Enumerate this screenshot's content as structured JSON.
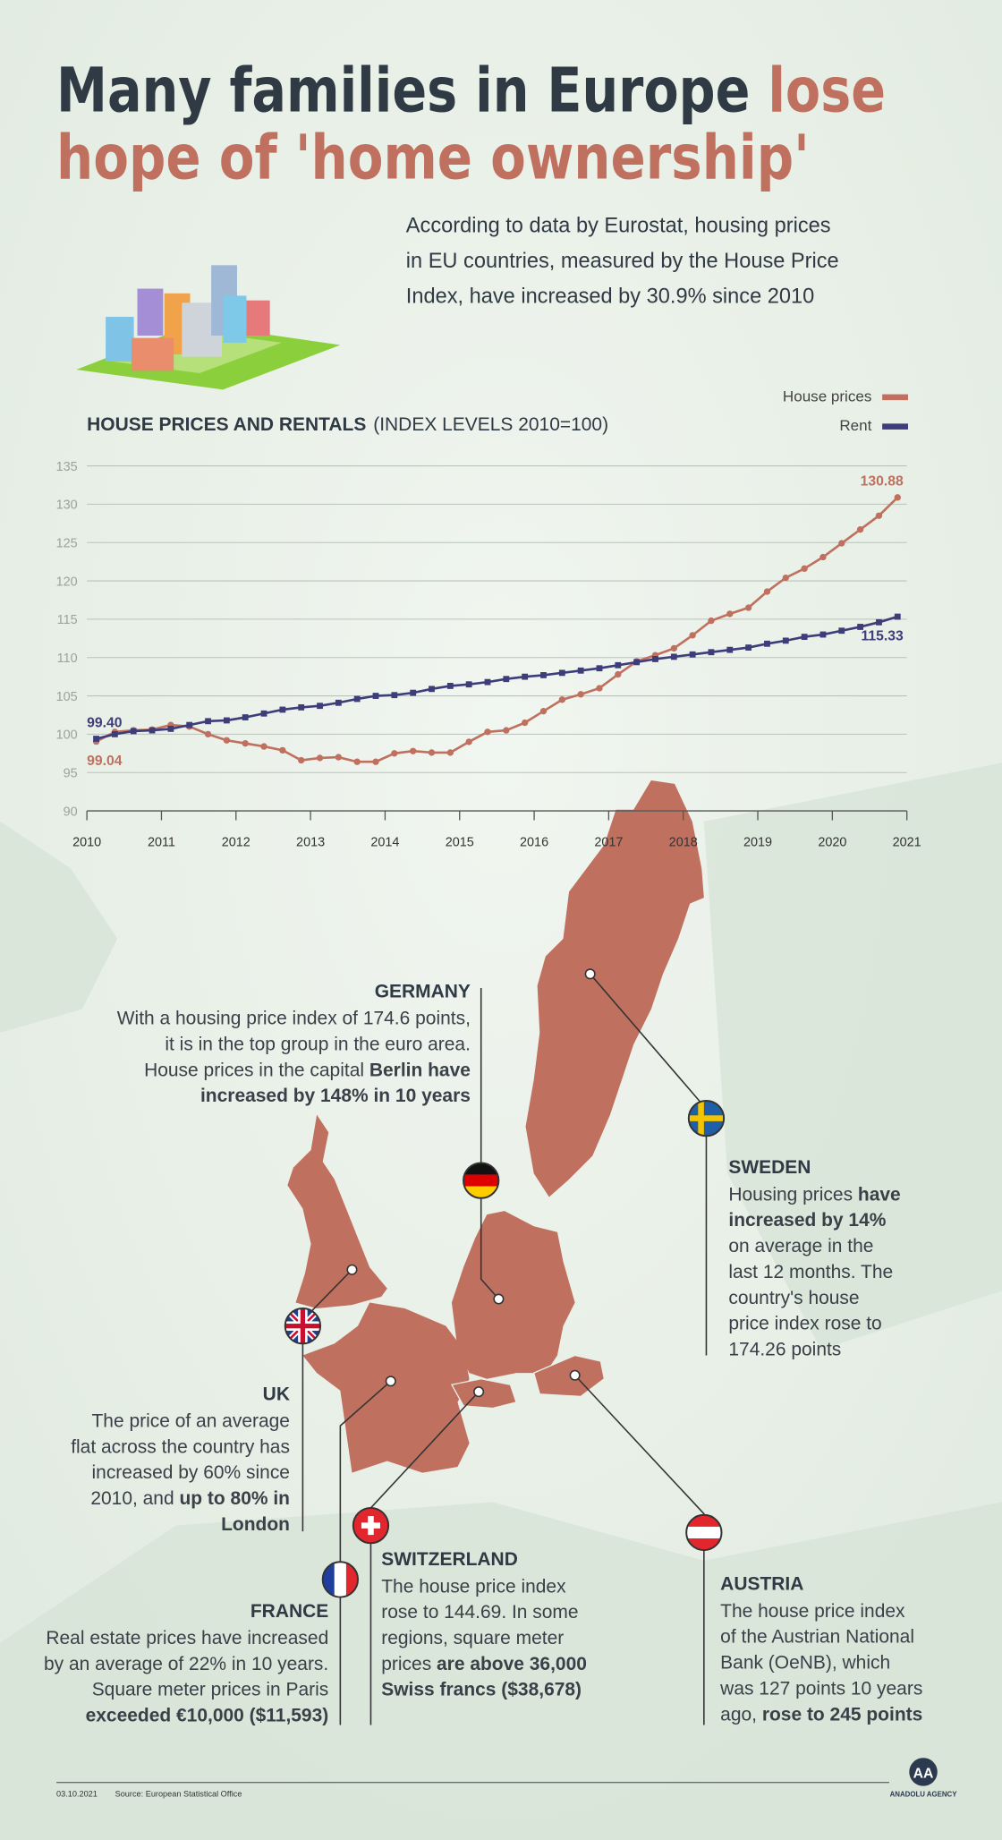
{
  "header": {
    "title_lines": [
      [
        {
          "text": "Many families in Europe ",
          "accent": false
        },
        {
          "text": "lose",
          "accent": true
        }
      ],
      [
        {
          "text": "hope of 'home ownership'",
          "accent": true
        }
      ]
    ],
    "intro_lines": [
      "According to data by Eurostat, housing prices",
      "in EU countries, measured by the House Price",
      "Index, have increased by 30.9% since 2010"
    ]
  },
  "chart_data": {
    "type": "line",
    "title": "HOUSE PRICES AND RENTALS",
    "subtitle": "(INDEX LEVELS 2010=100)",
    "x": [
      2010.125,
      2010.375,
      2010.625,
      2010.875,
      2011.125,
      2011.375,
      2011.625,
      2011.875,
      2012.125,
      2012.375,
      2012.625,
      2012.875,
      2013.125,
      2013.375,
      2013.625,
      2013.875,
      2014.125,
      2014.375,
      2014.625,
      2014.875,
      2015.125,
      2015.375,
      2015.625,
      2015.875,
      2016.125,
      2016.375,
      2016.625,
      2016.875,
      2017.125,
      2017.375,
      2017.625,
      2017.875,
      2018.125,
      2018.375,
      2018.625,
      2018.875,
      2019.125,
      2019.375,
      2019.625,
      2019.875,
      2020.125,
      2020.375,
      2020.625,
      2020.875
    ],
    "series": [
      {
        "name": "House prices",
        "color": "#c0705f",
        "values": [
          99.04,
          100.3,
          100.5,
          100.6,
          101.2,
          101.0,
          100.0,
          99.2,
          98.8,
          98.4,
          97.9,
          96.6,
          96.9,
          97.0,
          96.4,
          96.4,
          97.5,
          97.8,
          97.6,
          97.6,
          99.0,
          100.3,
          100.5,
          101.5,
          103.0,
          104.5,
          105.2,
          106.0,
          107.8,
          109.5,
          110.3,
          111.2,
          112.9,
          114.8,
          115.7,
          116.5,
          118.6,
          120.4,
          121.6,
          123.1,
          124.9,
          126.7,
          128.5,
          130.88
        ],
        "value_labels": [
          "99.04",
          null,
          null,
          null,
          null,
          null,
          null,
          null,
          null,
          null,
          null,
          null,
          null,
          null,
          null,
          null,
          null,
          null,
          null,
          null,
          null,
          null,
          null,
          null,
          null,
          null,
          null,
          null,
          null,
          null,
          null,
          null,
          null,
          null,
          null,
          null,
          null,
          null,
          null,
          null,
          null,
          null,
          null,
          "130.88"
        ]
      },
      {
        "name": "Rent",
        "color": "#3d3d7a",
        "values": [
          99.4,
          100.0,
          100.4,
          100.5,
          100.7,
          101.2,
          101.7,
          101.8,
          102.2,
          102.7,
          103.2,
          103.5,
          103.7,
          104.1,
          104.6,
          105.0,
          105.1,
          105.4,
          105.9,
          106.3,
          106.5,
          106.8,
          107.2,
          107.5,
          107.7,
          108.0,
          108.3,
          108.6,
          109.0,
          109.4,
          109.8,
          110.1,
          110.4,
          110.7,
          111.0,
          111.3,
          111.8,
          112.2,
          112.7,
          113.0,
          113.5,
          114.0,
          114.6,
          115.33
        ],
        "value_labels": [
          "99.40",
          null,
          null,
          null,
          null,
          null,
          null,
          null,
          null,
          null,
          null,
          null,
          null,
          null,
          null,
          null,
          null,
          null,
          null,
          null,
          null,
          null,
          null,
          null,
          null,
          null,
          null,
          null,
          null,
          null,
          null,
          null,
          null,
          null,
          null,
          null,
          null,
          null,
          null,
          null,
          null,
          null,
          null,
          "115.33"
        ]
      }
    ],
    "xlim": [
      2010,
      2021
    ],
    "xticks": [
      2010,
      2011,
      2012,
      2013,
      2014,
      2015,
      2016,
      2017,
      2018,
      2019,
      2020,
      2021
    ],
    "ylim": [
      90,
      135
    ],
    "yticks": [
      90,
      95,
      100,
      105,
      110,
      115,
      120,
      125,
      130,
      135
    ],
    "grid": true,
    "legend": "top-right"
  },
  "map_notes": [
    {
      "country": "GERMANY",
      "lines": [
        [
          {
            "text": "With a housing price index of 174.6 points,",
            "bold": false
          }
        ],
        [
          {
            "text": "it is in the top group in the euro area.",
            "bold": false
          }
        ],
        [
          {
            "text": "House prices in the capital ",
            "bold": false
          },
          {
            "text": "Berlin have",
            "bold": true
          }
        ],
        [
          {
            "text": "increased by 148% in 10 years",
            "bold": true
          }
        ]
      ]
    },
    {
      "country": "SWEDEN",
      "lines": [
        [
          {
            "text": "Housing prices ",
            "bold": false
          },
          {
            "text": "have",
            "bold": true
          }
        ],
        [
          {
            "text": "increased by 14%",
            "bold": true
          }
        ],
        [
          {
            "text": "on average in the",
            "bold": false
          }
        ],
        [
          {
            "text": "last 12 months. The",
            "bold": false
          }
        ],
        [
          {
            "text": "country's house",
            "bold": false
          }
        ],
        [
          {
            "text": "price index rose to",
            "bold": false
          }
        ],
        [
          {
            "text": "174.26 points",
            "bold": false
          }
        ]
      ]
    },
    {
      "country": "UK",
      "lines": [
        [
          {
            "text": "The price of an average",
            "bold": false
          }
        ],
        [
          {
            "text": "flat across the country has",
            "bold": false
          }
        ],
        [
          {
            "text": "increased by 60% since",
            "bold": false
          }
        ],
        [
          {
            "text": "2010, and ",
            "bold": false
          },
          {
            "text": "up to 80% in",
            "bold": true
          }
        ],
        [
          {
            "text": "London",
            "bold": true
          }
        ]
      ]
    },
    {
      "country": "FRANCE",
      "lines": [
        [
          {
            "text": "Real estate prices have increased",
            "bold": false
          }
        ],
        [
          {
            "text": "by an average of 22% in 10 years.",
            "bold": false
          }
        ],
        [
          {
            "text": "Square meter prices in Paris",
            "bold": false
          }
        ],
        [
          {
            "text": "exceeded €10,000 ($11,593)",
            "bold": true
          }
        ]
      ]
    },
    {
      "country": "SWITZERLAND",
      "lines": [
        [
          {
            "text": "The house price index",
            "bold": false
          }
        ],
        [
          {
            "text": "rose to 144.69. In some",
            "bold": false
          }
        ],
        [
          {
            "text": "regions, square meter",
            "bold": false
          }
        ],
        [
          {
            "text": "prices ",
            "bold": false
          },
          {
            "text": "are above 36,000",
            "bold": true
          }
        ],
        [
          {
            "text": "Swiss francs ($38,678)",
            "bold": true
          }
        ]
      ]
    },
    {
      "country": "AUSTRIA",
      "lines": [
        [
          {
            "text": "The house price index",
            "bold": false
          }
        ],
        [
          {
            "text": "of the Austrian National",
            "bold": false
          }
        ],
        [
          {
            "text": "Bank (OeNB), which",
            "bold": false
          }
        ],
        [
          {
            "text": "was 127 points 10 years",
            "bold": false
          }
        ],
        [
          {
            "text": "ago, ",
            "bold": false
          },
          {
            "text": "rose to 245 points",
            "bold": true
          }
        ]
      ]
    }
  ],
  "footer": {
    "date": "03.10.2021",
    "source": "Source: European Statistical Office",
    "logo": "ANADOLU AGENCY"
  }
}
